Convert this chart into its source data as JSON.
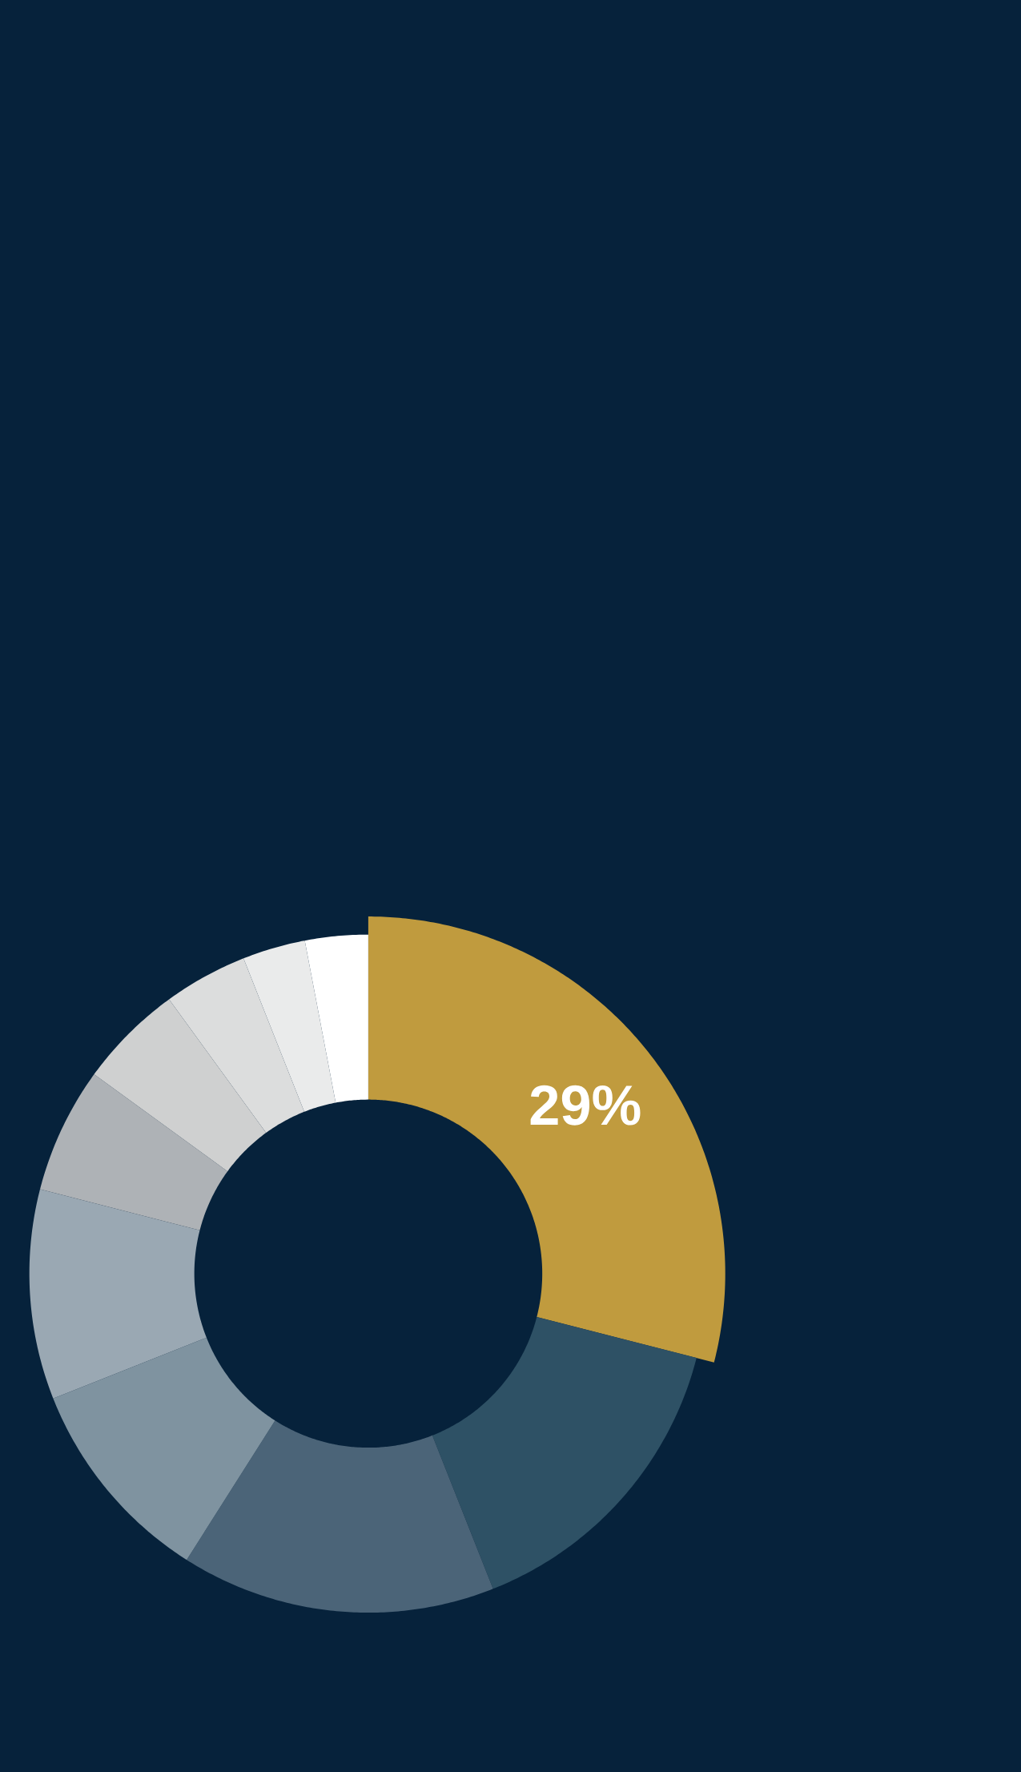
{
  "chart_data": {
    "type": "donut",
    "categories": [
      null,
      null,
      null,
      null,
      null,
      null,
      null,
      null,
      null,
      null
    ],
    "values": [
      29,
      15,
      15,
      10,
      10,
      6,
      5,
      4,
      3,
      3
    ],
    "colors": [
      "#c09b3e",
      "#2e5165",
      "#4b6478",
      "#7f93a0",
      "#9aa8b3",
      "#aeb2b6",
      "#cfd0d0",
      "#dcdddd",
      "#eaebeb",
      "#ffffff"
    ],
    "value_labels": [
      "29%",
      null,
      null,
      null,
      null,
      null,
      null,
      null,
      null,
      null
    ]
  }
}
